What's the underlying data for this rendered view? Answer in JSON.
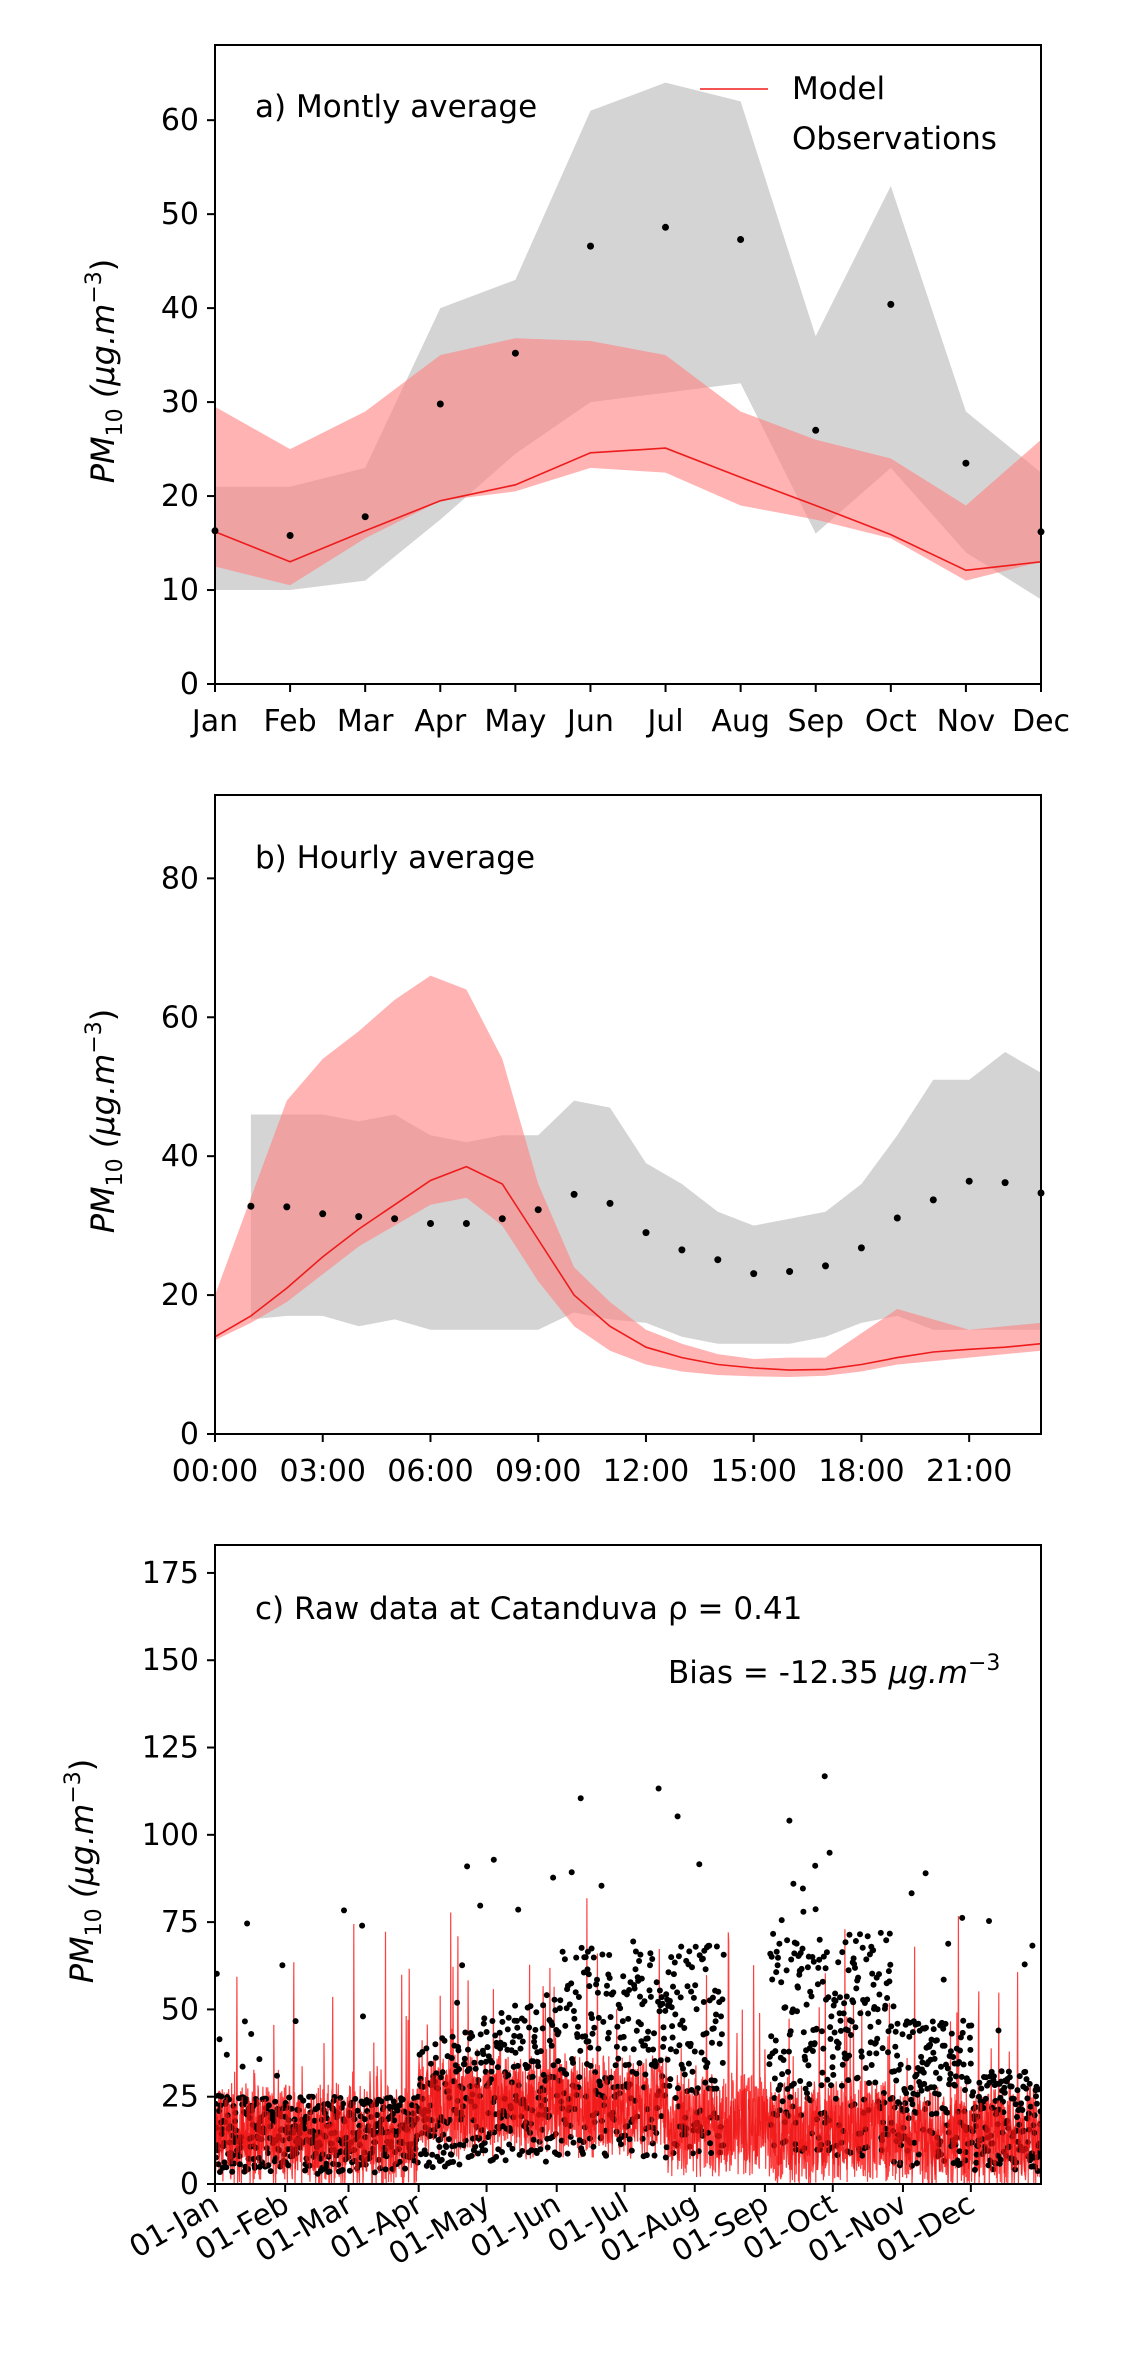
{
  "chart_data": [
    {
      "type": "line",
      "title": "a) Montly average",
      "xlabel": "",
      "ylabel": "PM_10 (μg.m^-3)",
      "ylabel_parts": {
        "main": "PM",
        "sub": "10",
        "unit": "(μg.m",
        "exp": "−3",
        "close": ")"
      },
      "ylim": [
        0,
        68
      ],
      "yticks": [
        0,
        10,
        20,
        30,
        40,
        50,
        60
      ],
      "xlim": [
        1,
        12
      ],
      "xticks": [
        1,
        2,
        3,
        4,
        5,
        6,
        7,
        8,
        9,
        10,
        11,
        12
      ],
      "xticklabels": [
        "Jan",
        "Feb",
        "Mar",
        "Apr",
        "May",
        "Jun",
        "Jul",
        "Aug",
        "Sep",
        "Oct",
        "Nov",
        "Dec"
      ],
      "legend": {
        "placement": "top-right",
        "entries": [
          "Model",
          "Observations"
        ]
      },
      "grid": false,
      "x": [
        1,
        2,
        3,
        4,
        5,
        6,
        7,
        8,
        9,
        10,
        11,
        12
      ],
      "series": [
        {
          "name": "Model",
          "kind": "line",
          "color": "#ee1c1c",
          "values": [
            16.2,
            13.0,
            16.3,
            19.5,
            21.2,
            24.6,
            25.1,
            22.0,
            19.0,
            15.9,
            12.1,
            13.0
          ]
        },
        {
          "name": "Observations",
          "kind": "points",
          "color": "#000000",
          "values": [
            16.3,
            15.8,
            17.8,
            29.8,
            35.2,
            46.6,
            48.6,
            47.3,
            27.0,
            40.4,
            23.5,
            16.2
          ]
        },
        {
          "kind": "band",
          "color": "#b8b8b8",
          "lower": [
            10.0,
            10.0,
            11.0,
            17.5,
            24.5,
            30.0,
            31.0,
            32.0,
            16.0,
            23.0,
            14.0,
            9.0
          ],
          "upper": [
            21.0,
            21.0,
            23.0,
            40.0,
            43.0,
            61.0,
            64.0,
            62.0,
            37.0,
            53.0,
            29.0,
            22.5
          ]
        },
        {
          "kind": "band",
          "color": "#ff8080",
          "lower": [
            12.5,
            10.5,
            15.5,
            19.5,
            20.5,
            23.0,
            22.5,
            19.0,
            17.5,
            15.5,
            11.0,
            13.0
          ],
          "upper": [
            29.5,
            25.0,
            29.0,
            35.0,
            36.8,
            36.5,
            35.0,
            29.0,
            26.0,
            24.0,
            19.0,
            26.0
          ]
        }
      ]
    },
    {
      "type": "line",
      "title": "b) Hourly average",
      "xlabel": "",
      "ylabel": "PM_10 (μg.m^-3)",
      "ylabel_parts": {
        "main": "PM",
        "sub": "10",
        "unit": "(μg.m",
        "exp": "−3",
        "close": ")"
      },
      "ylim": [
        0,
        92
      ],
      "yticks": [
        0,
        20,
        40,
        60,
        80
      ],
      "xlim": [
        0,
        23
      ],
      "xticks": [
        0,
        3,
        6,
        9,
        12,
        15,
        18,
        21
      ],
      "xticklabels": [
        "00:00",
        "03:00",
        "06:00",
        "09:00",
        "12:00",
        "15:00",
        "18:00",
        "21:00"
      ],
      "grid": false,
      "x": [
        0,
        1,
        2,
        3,
        4,
        5,
        6,
        7,
        8,
        9,
        10,
        11,
        12,
        13,
        14,
        15,
        16,
        17,
        18,
        19,
        20,
        21,
        22,
        23
      ],
      "series": [
        {
          "name": "Model",
          "kind": "line",
          "color": "#ee1c1c",
          "values": [
            14,
            17,
            21,
            25.5,
            29.5,
            33,
            36.5,
            38.5,
            36,
            28,
            20,
            15.5,
            12.5,
            11,
            10,
            9.5,
            9.2,
            9.3,
            10,
            11,
            11.8,
            12.2,
            12.5,
            13
          ]
        },
        {
          "name": "Observations",
          "kind": "points",
          "color": "#000000",
          "values": [
            null,
            32.8,
            32.7,
            31.7,
            31.3,
            31.0,
            30.3,
            30.3,
            31.0,
            32.3,
            34.5,
            33.2,
            29.0,
            26.5,
            25.1,
            23.1,
            23.4,
            24.2,
            26.8,
            31.1,
            33.7,
            36.4,
            36.2,
            34.7
          ]
        },
        {
          "kind": "band",
          "color": "#b8b8b8",
          "lower": [
            null,
            16.5,
            17,
            17,
            15.5,
            16.5,
            15,
            15,
            15,
            15,
            17.5,
            16.5,
            16,
            14,
            13,
            13,
            13,
            14,
            16,
            17,
            15,
            15,
            15,
            15
          ],
          "upper": [
            null,
            46,
            46,
            46,
            45,
            46,
            43,
            42,
            43,
            43,
            48,
            47,
            39,
            36,
            32,
            30,
            31,
            32,
            36,
            43,
            51,
            51,
            55,
            52
          ]
        },
        {
          "kind": "band",
          "color": "#ff8080",
          "lower": [
            13.5,
            16,
            19,
            23,
            27,
            30,
            33,
            34,
            30,
            22,
            15.5,
            12,
            10,
            9,
            8.5,
            8.3,
            8.2,
            8.4,
            9,
            10,
            10.5,
            11,
            11.5,
            12
          ]
        },
        {
          "kind": "band-upper",
          "values": [
            20,
            34,
            48,
            54,
            58,
            62.5,
            66,
            64,
            54,
            36,
            24,
            19,
            15,
            13,
            11.5,
            10.8,
            11,
            11,
            14.5,
            18,
            16.5,
            15,
            15.5,
            16
          ]
        }
      ]
    },
    {
      "type": "line",
      "title": "c) Raw data at Catanduva",
      "xlabel": "",
      "ylabel": "PM_10 (μg.m^-3)",
      "ylabel_parts": {
        "main": "PM",
        "sub": "10",
        "unit": "(μg.m",
        "exp": "−3",
        "close": ")"
      },
      "ylim": [
        0,
        183
      ],
      "yticks": [
        0,
        25,
        50,
        75,
        100,
        125,
        150,
        175
      ],
      "xlim": [
        0,
        365
      ],
      "xticks": [
        0,
        31,
        59,
        90,
        120,
        151,
        181,
        212,
        243,
        273,
        304,
        334
      ],
      "xticklabels": [
        "01-Jan",
        "01-Feb",
        "01-Mar",
        "01-Apr",
        "01-May",
        "01-Jun",
        "01-Jul",
        "01-Aug",
        "01-Sep",
        "01-Oct",
        "01-Nov",
        "01-Dec"
      ],
      "annotations": [
        "ρ = 0.41",
        "Bias = -12.35"
      ],
      "bias_unit": {
        "unit": "μg.m",
        "exp": "−3"
      },
      "grid": false,
      "series": [
        {
          "name": "Model",
          "kind": "hourly-line",
          "color": "#ff0000"
        },
        {
          "name": "Observations",
          "kind": "hourly-points",
          "color": "#000000"
        }
      ]
    }
  ]
}
